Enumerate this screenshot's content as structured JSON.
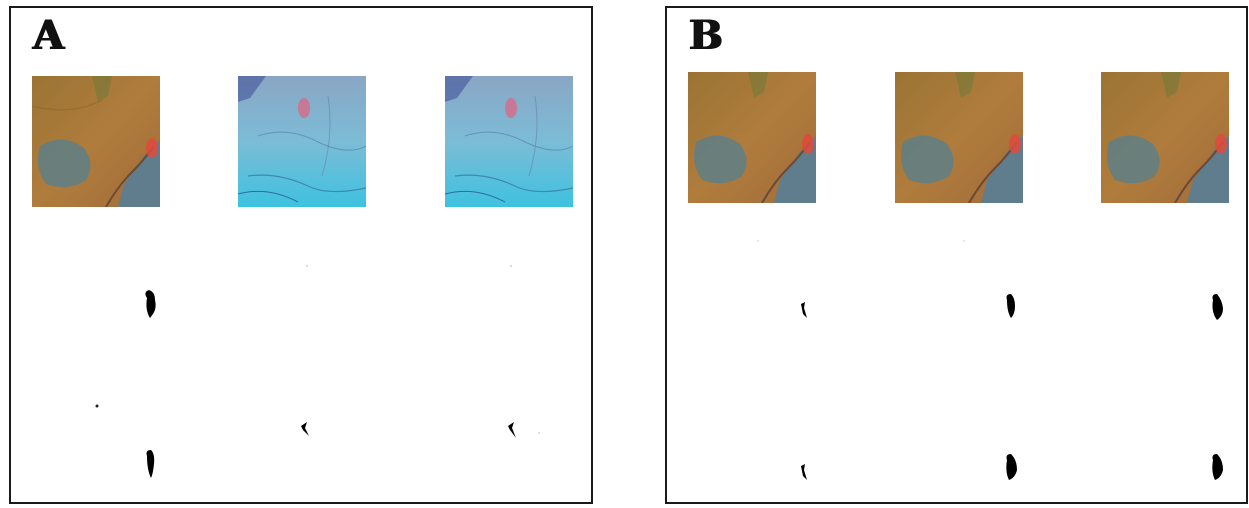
{
  "panels": [
    {
      "id": "A",
      "label": "A",
      "thumbnails": [
        {
          "scene": "terrain-orange"
        },
        {
          "scene": "terrain-cyan"
        },
        {
          "scene": "terrain-cyan"
        }
      ]
    },
    {
      "id": "B",
      "label": "B",
      "thumbnails": [
        {
          "scene": "terrain-orange"
        },
        {
          "scene": "terrain-orange"
        },
        {
          "scene": "terrain-orange"
        }
      ]
    }
  ],
  "colors": {
    "border": "#1a1a1a",
    "terrain_orange_base": "#a9783a",
    "terrain_cyan_base": "#6fc6dc",
    "water_blue": "#5f7f8a",
    "hotspot_red": "#e04a3c",
    "mask_black": "#000000"
  }
}
